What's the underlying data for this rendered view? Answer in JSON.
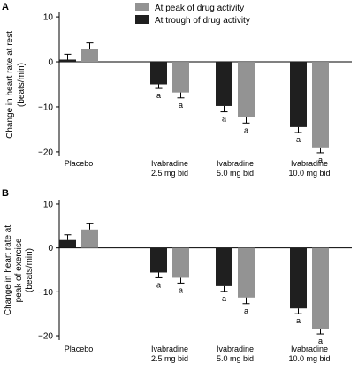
{
  "colors": {
    "trough": "#1f1f1f",
    "peak": "#939393",
    "axis": "#000000"
  },
  "legend": [
    {
      "label": "At peak of drug activity",
      "color_key": "peak"
    },
    {
      "label": "At trough of drug activity",
      "color_key": "trough"
    }
  ],
  "chart_data": [
    {
      "panel": "A",
      "type": "bar",
      "ylabel": "Change in heart rate at rest (beats/min)",
      "ylabel_lines": [
        "Change in heart rate at rest",
        "(beats/min)"
      ],
      "ylim": [
        -21,
        11
      ],
      "yticks": [
        10,
        0,
        -10,
        -20
      ],
      "ytick_labels": [
        "10",
        "0",
        "−10",
        "−20"
      ],
      "categories": [
        "Placebo",
        "Ivabradine 2.5 mg bid",
        "Ivabradine 5.0 mg bid",
        "Ivabradine 10.0 mg bid"
      ],
      "category_lines": [
        [
          "Placebo"
        ],
        [
          "Ivabradine",
          "2.5 mg bid"
        ],
        [
          "Ivabradine",
          "5.0 mg bid"
        ],
        [
          "Ivabradine",
          "10.0 mg bid"
        ]
      ],
      "series": [
        {
          "name": "At trough of drug activity",
          "color_key": "trough",
          "values": [
            0.5,
            -5.0,
            -9.8,
            -14.5
          ],
          "errors": [
            1.2,
            0.9,
            1.3,
            1.2
          ],
          "annotations": [
            "",
            "a",
            "a",
            "a"
          ]
        },
        {
          "name": "At peak of drug activity",
          "color_key": "peak",
          "values": [
            2.9,
            -6.8,
            -12.2,
            -19.0
          ],
          "errors": [
            1.3,
            1.2,
            1.4,
            1.2
          ],
          "annotations": [
            "",
            "a",
            "a",
            "a"
          ]
        }
      ]
    },
    {
      "panel": "B",
      "type": "bar",
      "ylabel": "Change in heart rate at peak of exercise (beats/min)",
      "ylabel_lines": [
        "Change in heart rate at",
        "peak of exercise",
        "(beats/min)"
      ],
      "ylim": [
        -21,
        11
      ],
      "yticks": [
        10,
        0,
        -10,
        -20
      ],
      "ytick_labels": [
        "10",
        "0",
        "−10",
        "−20"
      ],
      "categories": [
        "Placebo",
        "Ivabradine 2.5 mg bid",
        "Ivabradine 5.0 mg bid",
        "Ivabradine 10.0 mg bid"
      ],
      "category_lines": [
        [
          "Placebo"
        ],
        [
          "Ivabradine",
          "2.5 mg bid"
        ],
        [
          "Ivabradine",
          "5.0 mg bid"
        ],
        [
          "Ivabradine",
          "10.0 mg bid"
        ]
      ],
      "series": [
        {
          "name": "At trough of drug activity",
          "color_key": "trough",
          "values": [
            1.8,
            -5.6,
            -8.7,
            -13.8
          ],
          "errors": [
            1.2,
            1.2,
            1.2,
            1.2
          ],
          "annotations": [
            "",
            "a",
            "a",
            "a"
          ]
        },
        {
          "name": "At peak of drug activity",
          "color_key": "peak",
          "values": [
            4.2,
            -6.8,
            -11.3,
            -18.4
          ],
          "errors": [
            1.3,
            1.2,
            1.4,
            1.2
          ],
          "annotations": [
            "",
            "a",
            "a",
            "a"
          ]
        }
      ]
    }
  ]
}
